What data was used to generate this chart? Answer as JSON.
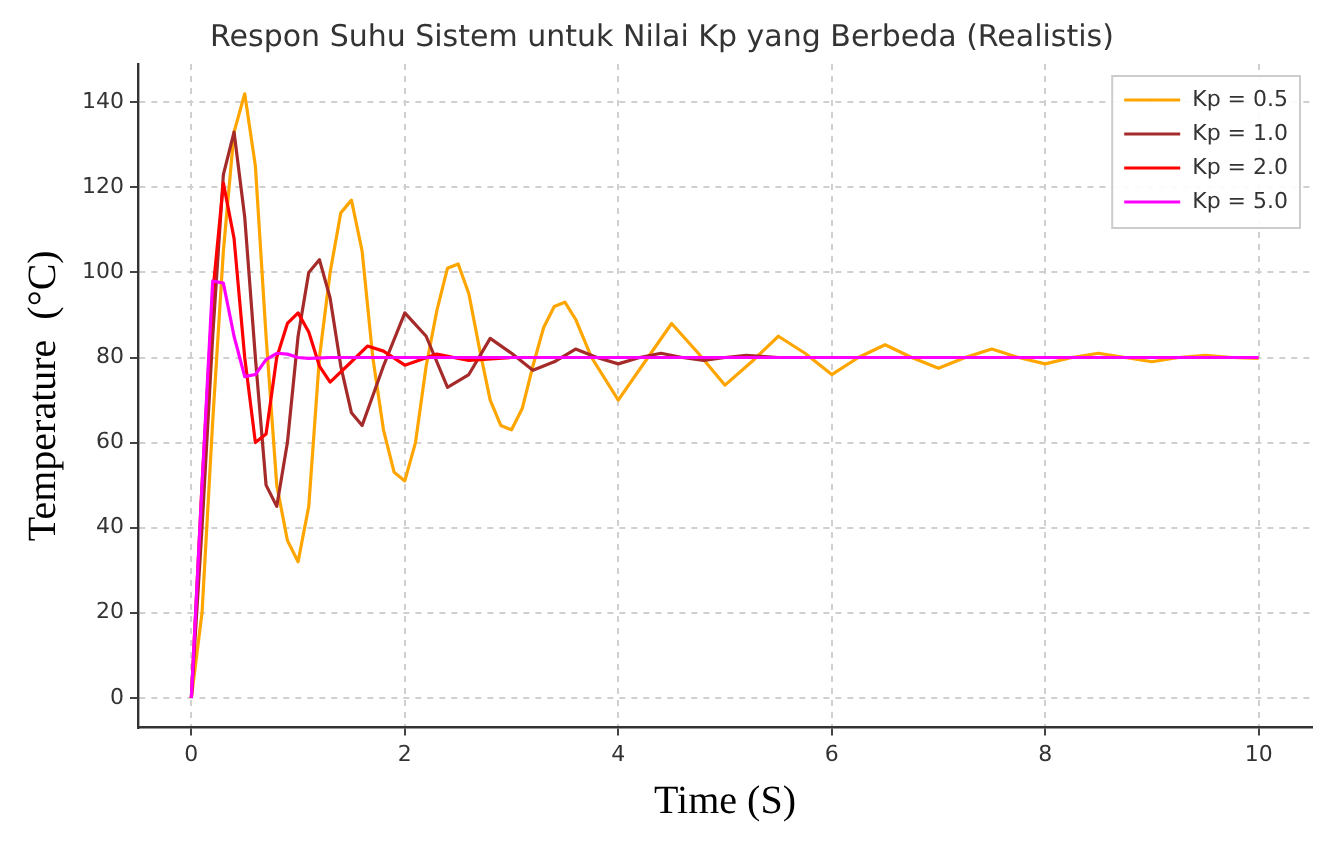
{
  "chart_data": {
    "type": "line",
    "title": "Respon Suhu Sistem untuk Nilai Kp yang Berbeda (Realistis)",
    "xlabel": "Time (S)",
    "ylabel": "Temperature  (°C)",
    "xlim": [
      -0.5,
      10.5
    ],
    "ylim": [
      -7,
      149
    ],
    "xticks": [
      0,
      2,
      4,
      6,
      8,
      10
    ],
    "yticks": [
      0,
      20,
      40,
      60,
      80,
      100,
      120,
      140
    ],
    "grid": true,
    "legend": "top right",
    "marker": "none",
    "line_style": "solid",
    "series": [
      {
        "name": "Kp = 0.5",
        "color": "#ffa500",
        "x": [
          0,
          0.1,
          0.2,
          0.3,
          0.4,
          0.5,
          0.6,
          0.7,
          0.8,
          0.9,
          1.0,
          1.1,
          1.2,
          1.3,
          1.4,
          1.5,
          1.6,
          1.7,
          1.8,
          1.9,
          2.0,
          2.1,
          2.2,
          2.3,
          2.4,
          2.5,
          2.6,
          2.7,
          2.8,
          2.9,
          3.0,
          3.1,
          3.2,
          3.3,
          3.4,
          3.5,
          3.6,
          3.75,
          4.0,
          4.25,
          4.5,
          4.75,
          5.0,
          5.25,
          5.5,
          5.75,
          6.0,
          6.25,
          6.5,
          6.75,
          7.0,
          7.25,
          7.5,
          7.75,
          8.0,
          8.25,
          8.5,
          8.75,
          9.0,
          9.25,
          9.5,
          9.75,
          10
        ],
        "values": [
          0,
          20,
          65,
          105,
          133,
          142,
          125,
          85,
          50,
          37,
          32,
          45,
          80,
          100,
          114,
          117,
          105,
          80,
          63,
          53,
          51,
          60,
          78,
          91,
          101,
          102,
          95,
          82,
          70,
          64,
          63,
          68,
          78,
          87,
          92,
          93,
          89,
          80,
          70,
          79,
          88,
          81,
          73.5,
          79,
          85,
          81,
          76,
          80,
          83,
          80,
          77.5,
          80,
          82,
          80,
          78.5,
          80,
          81,
          80,
          79,
          80,
          80.5,
          80,
          79.8
        ]
      },
      {
        "name": "Kp = 1.0",
        "color": "#a52a2a",
        "x": [
          0,
          0.1,
          0.2,
          0.3,
          0.4,
          0.5,
          0.6,
          0.7,
          0.8,
          0.9,
          1.0,
          1.1,
          1.2,
          1.3,
          1.4,
          1.5,
          1.6,
          1.8,
          2.0,
          2.2,
          2.4,
          2.6,
          2.8,
          3.0,
          3.2,
          3.4,
          3.6,
          3.8,
          4.0,
          4.2,
          4.4,
          4.6,
          4.8,
          5.0,
          5.2,
          5.5
        ],
        "values": [
          0,
          40,
          85,
          123,
          133,
          113,
          80,
          50,
          45,
          60,
          85,
          100,
          103,
          94,
          78,
          67,
          64,
          78,
          90.5,
          85,
          73,
          76,
          84.5,
          81,
          77,
          79,
          82,
          80,
          78.5,
          80,
          81,
          80,
          79.3,
          80,
          80.5,
          80
        ]
      },
      {
        "name": "Kp = 2.0",
        "color": "#ff0000",
        "x": [
          0,
          0.1,
          0.2,
          0.3,
          0.4,
          0.5,
          0.6,
          0.7,
          0.8,
          0.9,
          1.0,
          1.1,
          1.2,
          1.3,
          1.5,
          1.65,
          1.8,
          2.0,
          2.3,
          2.6,
          3
        ],
        "values": [
          0,
          50,
          95,
          121,
          108,
          80,
          60,
          62,
          80,
          88,
          90.5,
          86,
          78,
          74.2,
          79,
          82.7,
          81.5,
          78.2,
          80.8,
          79.3,
          80
        ]
      },
      {
        "name": "Kp = 5.0",
        "color": "#ff00ff",
        "x": [
          0,
          0.1,
          0.2,
          0.3,
          0.4,
          0.5,
          0.6,
          0.7,
          0.8,
          0.9,
          1.0,
          1.1,
          1.3,
          2,
          3,
          4,
          5,
          6,
          7,
          8,
          9,
          10
        ],
        "values": [
          0,
          50,
          98,
          97.5,
          85,
          75.5,
          76,
          79.5,
          81,
          80.8,
          80,
          79.8,
          80,
          80,
          80,
          80,
          80,
          80,
          80,
          80,
          80,
          80
        ]
      }
    ]
  }
}
